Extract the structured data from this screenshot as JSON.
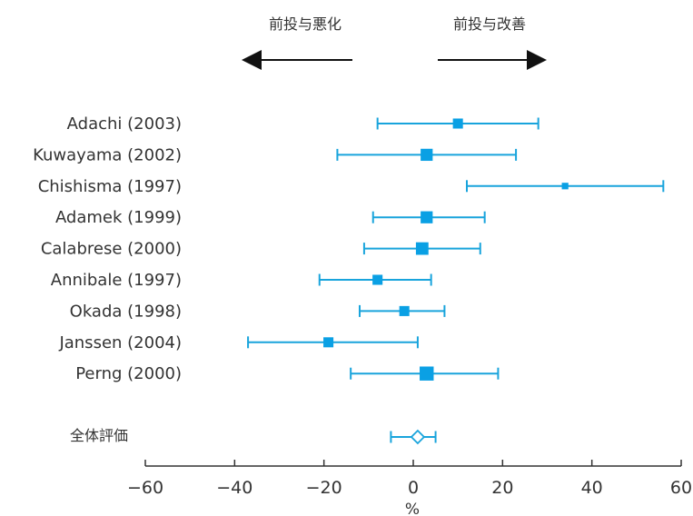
{
  "colors": {
    "ci": "#19a4dc",
    "point": "#0aa0e4",
    "axis": "#333333",
    "arrow": "#111111",
    "summary_fill": "#ffffff"
  },
  "chart_data": {
    "type": "forest",
    "title": "",
    "xlabel": "%",
    "xlim": [
      -60,
      60
    ],
    "x_ticks": [
      -60,
      -40,
      -20,
      0,
      20,
      40,
      60
    ],
    "x_tick_labels": [
      "−60",
      "−40",
      "−20",
      "0",
      "20",
      "40",
      "60"
    ],
    "direction_labels": {
      "left": "前投与悪化",
      "right": "前投与改善"
    },
    "studies": [
      {
        "label": "Adachi (2003)",
        "estimate": 10,
        "lower": -8,
        "upper": 28,
        "weight": 0.55
      },
      {
        "label": "Kuwayama (2002)",
        "estimate": 3,
        "lower": -17,
        "upper": 23,
        "weight": 0.75
      },
      {
        "label": "Chishisma (1997)",
        "estimate": 34,
        "lower": 12,
        "upper": 56,
        "weight": 0.2
      },
      {
        "label": "Adamek (1999)",
        "estimate": 3,
        "lower": -9,
        "upper": 16,
        "weight": 0.75
      },
      {
        "label": "Calabrese (2000)",
        "estimate": 2,
        "lower": -11,
        "upper": 15,
        "weight": 0.8
      },
      {
        "label": "Annibale (1997)",
        "estimate": -8,
        "lower": -21,
        "upper": 4,
        "weight": 0.55
      },
      {
        "label": "Okada (1998)",
        "estimate": -2,
        "lower": -12,
        "upper": 7,
        "weight": 0.55
      },
      {
        "label": "Janssen (2004)",
        "estimate": -19,
        "lower": -37,
        "upper": 1,
        "weight": 0.55
      },
      {
        "label": "Perng (2000)",
        "estimate": 3,
        "lower": -14,
        "upper": 19,
        "weight": 0.95
      }
    ],
    "summary": {
      "label": "全体評価",
      "estimate": 1,
      "lower": -5,
      "upper": 5
    }
  }
}
